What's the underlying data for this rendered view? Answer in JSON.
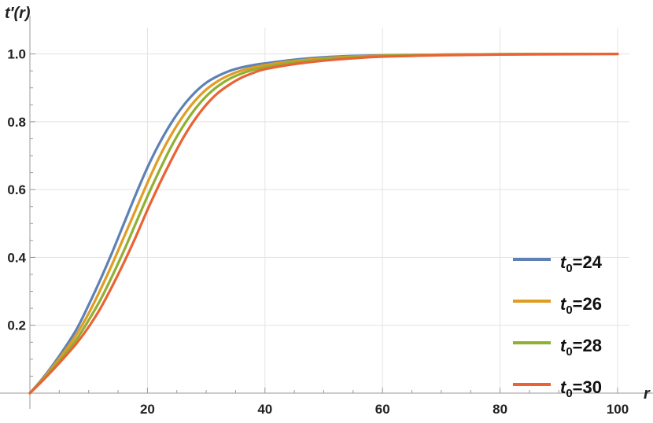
{
  "chart_data": {
    "type": "line",
    "title": "",
    "xlabel": "r",
    "ylabel": "t′(r)",
    "xlim": [
      0,
      100
    ],
    "ylim": [
      0,
      1.05
    ],
    "x_ticks": [
      20,
      40,
      60,
      80,
      100
    ],
    "x_tick_labels": [
      "20",
      "40",
      "60",
      "80",
      "100"
    ],
    "y_ticks": [
      0.2,
      0.4,
      0.6,
      0.8,
      1.0
    ],
    "y_tick_labels": [
      "0.2",
      "0.4",
      "0.6",
      "0.8",
      "1.0"
    ],
    "grid": true,
    "legend_position": "bottom-right",
    "x": [
      0,
      2,
      4,
      6,
      8,
      10,
      12,
      14,
      16,
      18,
      20,
      22,
      24,
      26,
      28,
      30,
      32,
      34,
      36,
      38,
      40,
      45,
      50,
      55,
      60,
      70,
      80,
      90,
      100
    ],
    "series": [
      {
        "name": "t0=24",
        "legend_main": "t",
        "legend_sub": "0",
        "legend_rest": "=24",
        "color": "#5e81b5",
        "values": [
          0.0,
          0.04,
          0.085,
          0.135,
          0.19,
          0.26,
          0.335,
          0.415,
          0.5,
          0.585,
          0.665,
          0.735,
          0.795,
          0.845,
          0.885,
          0.915,
          0.935,
          0.95,
          0.96,
          0.967,
          0.972,
          0.983,
          0.99,
          0.994,
          0.996,
          0.998,
          0.999,
          1.0,
          1.0
        ]
      },
      {
        "name": "t0=26",
        "legend_main": "t",
        "legend_sub": "0",
        "legend_rest": "=26",
        "color": "#e19c24",
        "values": [
          0.0,
          0.038,
          0.08,
          0.125,
          0.175,
          0.235,
          0.305,
          0.38,
          0.46,
          0.54,
          0.62,
          0.695,
          0.76,
          0.815,
          0.86,
          0.895,
          0.92,
          0.938,
          0.951,
          0.96,
          0.967,
          0.979,
          0.987,
          0.992,
          0.995,
          0.998,
          0.999,
          1.0,
          1.0
        ]
      },
      {
        "name": "t0=28",
        "legend_main": "t",
        "legend_sub": "0",
        "legend_rest": "=28",
        "color": "#8fb032",
        "values": [
          0.0,
          0.036,
          0.075,
          0.115,
          0.16,
          0.215,
          0.275,
          0.345,
          0.42,
          0.5,
          0.58,
          0.655,
          0.725,
          0.785,
          0.835,
          0.875,
          0.905,
          0.927,
          0.942,
          0.953,
          0.961,
          0.975,
          0.984,
          0.99,
          0.994,
          0.997,
          0.999,
          1.0,
          1.0
        ]
      },
      {
        "name": "t0=30",
        "legend_main": "t",
        "legend_sub": "0",
        "legend_rest": "=30",
        "color": "#eb6235",
        "values": [
          0.0,
          0.034,
          0.07,
          0.108,
          0.148,
          0.195,
          0.25,
          0.315,
          0.385,
          0.46,
          0.54,
          0.615,
          0.685,
          0.75,
          0.805,
          0.85,
          0.885,
          0.91,
          0.93,
          0.944,
          0.955,
          0.97,
          0.98,
          0.987,
          0.992,
          0.996,
          0.998,
          0.999,
          1.0
        ]
      }
    ]
  }
}
